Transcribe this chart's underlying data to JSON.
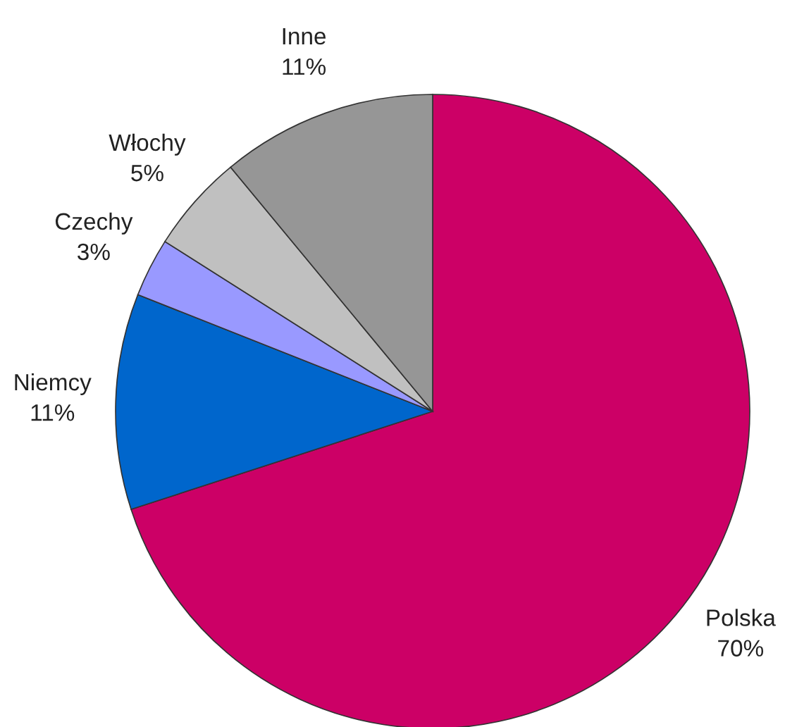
{
  "chart_data": {
    "type": "pie",
    "categories": [
      "Polska",
      "Niemcy",
      "Czechy",
      "Włochy",
      "Inne"
    ],
    "values": [
      70,
      11,
      3,
      5,
      11
    ],
    "value_labels": [
      "70%",
      "11%",
      "3%",
      "5%",
      "11%"
    ],
    "colors": [
      "#cc0066",
      "#0066cc",
      "#9999ff",
      "#c0c0c0",
      "#969696"
    ]
  }
}
